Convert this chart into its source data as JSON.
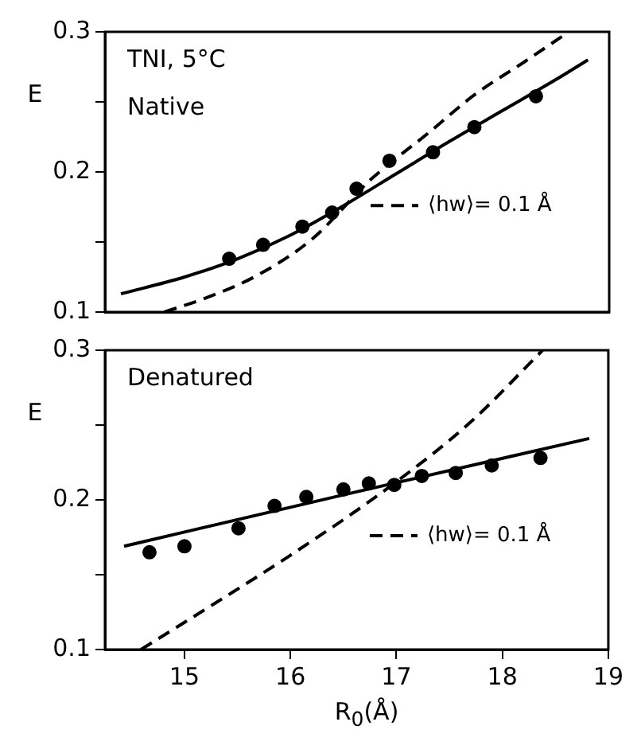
{
  "chart_data": [
    {
      "type": "scatter",
      "ylabel": "E",
      "annotations": [
        "TNI, 5°C",
        "Native"
      ],
      "xlim": [
        14.25,
        19
      ],
      "ylim": [
        0.1,
        0.3
      ],
      "yticks": [
        {
          "value": 0.1,
          "label": "0.1"
        },
        {
          "value": 0.15,
          "label": null
        },
        {
          "value": 0.2,
          "label": "0.2"
        },
        {
          "value": 0.25,
          "label": null
        },
        {
          "value": 0.3,
          "label": "0.3"
        }
      ],
      "tick_labels": "y",
      "grid": false,
      "legend": "right",
      "series": [
        {
          "type": "scatter",
          "color": "#000000",
          "marker": "circle",
          "x": [
            15.42,
            15.74,
            16.11,
            16.39,
            16.62,
            16.93,
            17.34,
            17.73,
            18.31
          ],
          "values": [
            0.138,
            0.148,
            0.161,
            0.171,
            0.188,
            0.208,
            0.214,
            0.232,
            0.254
          ]
        },
        {
          "type": "line",
          "color": "#000000",
          "line_style": "solid",
          "marker": "none",
          "x": [
            14.4,
            15,
            15.5,
            16,
            16.5,
            17,
            17.5,
            18,
            18.5,
            18.8
          ],
          "values": [
            0.113,
            0.125,
            0.138,
            0.155,
            0.176,
            0.199,
            0.222,
            0.244,
            0.266,
            0.28
          ]
        },
        {
          "type": "line",
          "name": "⟨hw⟩= 0.1 Å",
          "color": "#000000",
          "line_style": "dashed",
          "marker": "none",
          "x": [
            14.81,
            15.2,
            15.68,
            16.2,
            16.76,
            17.3,
            17.73,
            18.19,
            18.6
          ],
          "values": [
            0.1,
            0.11,
            0.126,
            0.152,
            0.195,
            0.228,
            0.255,
            0.278,
            0.299
          ]
        }
      ]
    },
    {
      "type": "scatter",
      "ylabel": "E",
      "xlabel": "R$_{0}$(Å)",
      "annotations": [
        "Denatured"
      ],
      "xlim": [
        14.25,
        19
      ],
      "xticks": [
        15,
        16,
        17,
        18,
        19
      ],
      "ylim": [
        0.1,
        0.3
      ],
      "yticks": [
        {
          "value": 0.1,
          "label": "0.1"
        },
        {
          "value": 0.15,
          "label": null
        },
        {
          "value": 0.2,
          "label": "0.2"
        },
        {
          "value": 0.25,
          "label": null
        },
        {
          "value": 0.3,
          "label": "0.3"
        }
      ],
      "grid": false,
      "legend": "right",
      "series": [
        {
          "type": "scatter",
          "color": "#000000",
          "marker": "circle",
          "x": [
            14.67,
            15.0,
            15.51,
            15.85,
            16.15,
            16.5,
            16.74,
            16.98,
            17.24,
            17.56,
            17.9,
            18.36
          ],
          "values": [
            0.165,
            0.169,
            0.181,
            0.196,
            0.202,
            0.207,
            0.211,
            0.21,
            0.216,
            0.218,
            0.223,
            0.228
          ]
        },
        {
          "type": "line",
          "color": "#000000",
          "line_style": "solid",
          "marker": "none",
          "x": [
            14.43,
            16.6,
            18.82
          ],
          "values": [
            0.169,
            0.205,
            0.241
          ]
        },
        {
          "type": "line",
          "name": "⟨hw⟩= 0.1 Å",
          "color": "#000000",
          "line_style": "dashed",
          "marker": "none",
          "x": [
            14.59,
            15.29,
            16,
            16.96,
            17.7,
            18.38
          ],
          "values": [
            0.1,
            0.131,
            0.163,
            0.21,
            0.252,
            0.3
          ]
        }
      ]
    }
  ]
}
